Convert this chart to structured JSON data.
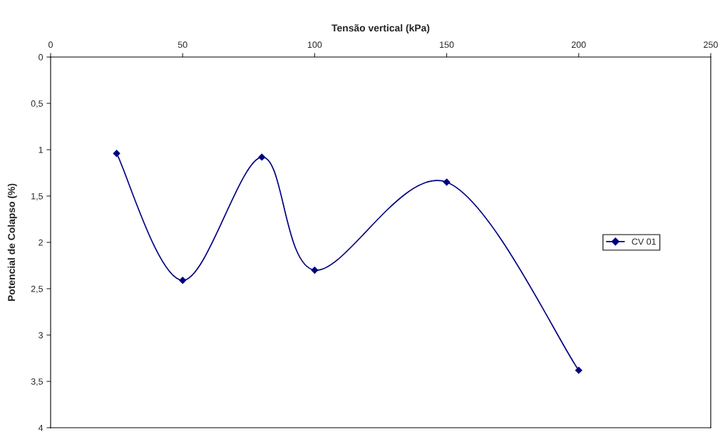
{
  "chart_data": {
    "type": "line",
    "xlabel": "Tensão vertical (kPa)",
    "ylabel": "Potencial de Colapso (%)",
    "x": [
      25,
      50,
      80,
      100,
      150,
      200
    ],
    "series": [
      {
        "name": "CV 01",
        "color": "#000080",
        "values": [
          1.04,
          2.41,
          1.08,
          2.3,
          1.35,
          3.38
        ]
      }
    ],
    "xlim": [
      0,
      250
    ],
    "xticks": [
      0,
      50,
      100,
      150,
      200,
      250
    ],
    "ylim": [
      4,
      0
    ],
    "yticks": [
      0,
      {
        "value": 0.5,
        "label": "0,5"
      },
      1,
      {
        "value": 1.5,
        "label": "1,5"
      },
      2,
      {
        "value": 2.5,
        "label": "2,5"
      },
      3,
      {
        "value": 3.5,
        "label": "3,5"
      },
      4
    ],
    "marker": "diamond",
    "line_style": "solid",
    "grid": false,
    "legend": "right"
  }
}
